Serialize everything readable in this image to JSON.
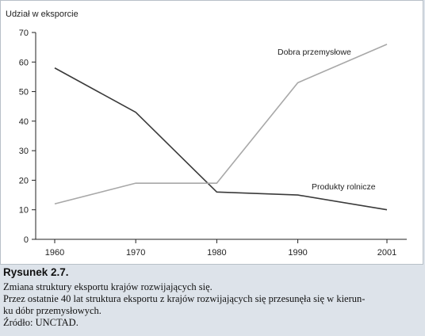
{
  "figure": {
    "label": "Rysunek 2.7.",
    "caption_title": "Zmiana struktury eksportu krajów rozwijających się.",
    "caption_text_1": "Przez ostatnie 40 lat struktura eksportu z krajów rozwijających się przesunęła się w kierun-",
    "caption_text_2": "ku dóbr przemysłowych.",
    "source": "Źródło: UNCTAD."
  },
  "chart_data": {
    "type": "line",
    "ylabel": "Udział w eksporcie",
    "xlabel": "",
    "x": [
      1960,
      1970,
      1980,
      1990,
      2001
    ],
    "x_tick_labels": [
      "1960",
      "1970",
      "1980",
      "1990",
      "2001"
    ],
    "ylim": [
      0,
      70
    ],
    "y_ticks": [
      0,
      10,
      20,
      30,
      40,
      50,
      60,
      70
    ],
    "grid": false,
    "series": [
      {
        "name": "Produkty rolnicze",
        "values": [
          58,
          43,
          16,
          15,
          10
        ],
        "color": "#3a3a3a"
      },
      {
        "name": "Dobra przemysłowe",
        "values": [
          12,
          19,
          19,
          53,
          66
        ],
        "color": "#a8a8a8"
      }
    ]
  }
}
